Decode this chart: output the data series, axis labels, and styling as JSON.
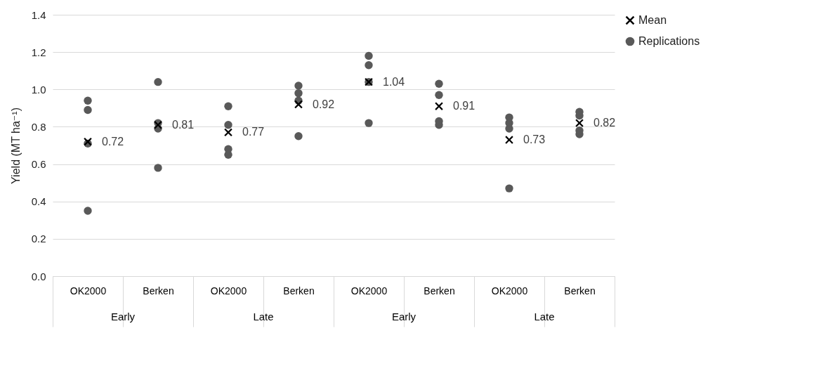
{
  "chart_data": {
    "type": "scatter",
    "ylabel": "Yield (MT ha⁻¹)",
    "categories": [
      "OK2000",
      "Berken",
      "OK2000",
      "Berken",
      "OK2000",
      "Berken",
      "OK2000",
      "Berken"
    ],
    "annotations": [
      "Early",
      "Late",
      "Early",
      "Late"
    ],
    "series": [
      {
        "name": "Mean",
        "color": "#000000",
        "marker": "cross",
        "values": [
          0.72,
          0.81,
          0.77,
          0.92,
          1.04,
          0.91,
          0.73,
          0.82
        ],
        "value_labels": [
          "0.72",
          "0.81",
          "0.77",
          "0.92",
          "1.04",
          "0.91",
          "0.73",
          "0.82"
        ]
      },
      {
        "name": "Replications",
        "color": "#595959",
        "marker": "circle",
        "values": [
          0.94,
          1.04,
          0.91,
          1.02,
          1.18,
          1.03,
          0.85,
          0.88
        ]
      },
      {
        "color": "#595959",
        "marker": "circle",
        "values": [
          0.89,
          0.82,
          0.81,
          0.98,
          1.13,
          0.97,
          0.82,
          0.86
        ]
      },
      {
        "color": "#595959",
        "marker": "circle",
        "values": [
          0.71,
          0.79,
          0.68,
          0.94,
          1.04,
          0.83,
          0.79,
          0.78
        ]
      },
      {
        "color": "#595959",
        "marker": "circle",
        "values": [
          0.35,
          0.58,
          0.65,
          0.75,
          0.82,
          0.81,
          0.47,
          0.76
        ]
      }
    ],
    "ylim": [
      0,
      1.4
    ],
    "yticks": [
      {
        "value": 0,
        "label": "0.0"
      },
      0.2,
      0.4,
      0.6,
      0.8,
      {
        "value": 1,
        "label": "1.0"
      },
      1.2,
      1.4
    ],
    "grid": "y",
    "legend": "right"
  }
}
